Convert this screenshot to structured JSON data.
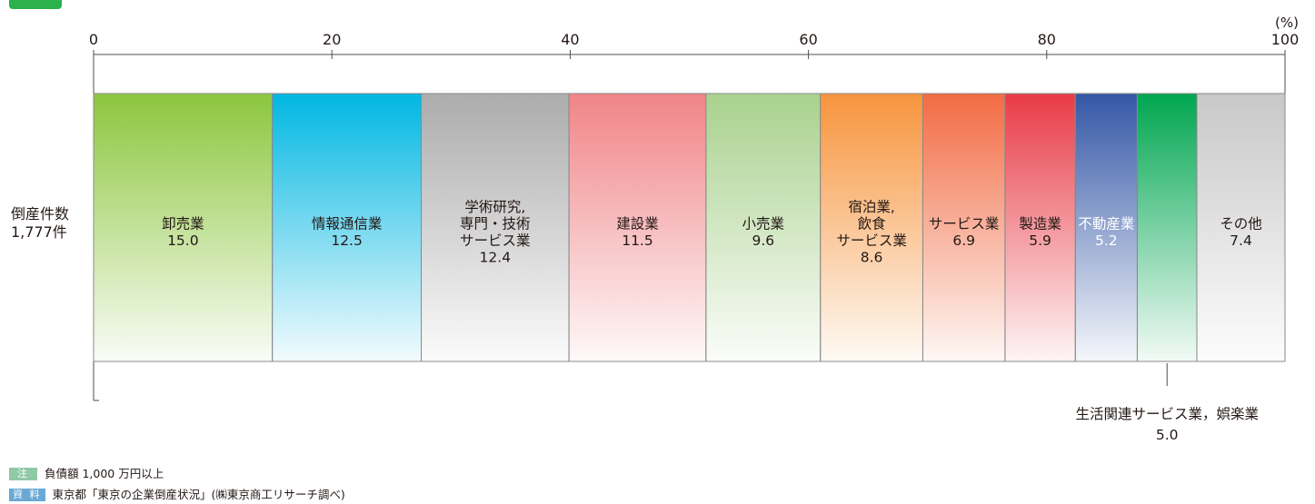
{
  "row_label": {
    "line1": "倒産件数",
    "line2": "1,777件"
  },
  "notes": {
    "note_tag": "注",
    "note_text": "負債額 1,000 万円以上",
    "source_tag": "資 料",
    "source_text": "東京都「東京の企業倒産状況」(㈱東京商工リサーチ調べ)"
  },
  "colors": {
    "badge": "#2bb24c",
    "note_tag_bg": "#8fc9a5",
    "source_tag_bg": "#6aa9d3",
    "axis": "#4d4d4d",
    "divider": "#8a8a8a"
  },
  "chart_data": {
    "type": "bar",
    "orientation": "horizontal-stacked",
    "unit": "(%)",
    "xlim": [
      0,
      100
    ],
    "xticks": [
      0,
      20,
      40,
      60,
      80,
      100
    ],
    "segments": [
      {
        "lines": [
          "卸売業"
        ],
        "value": 15.0,
        "value_label": "15.0",
        "color": "#8cc63f",
        "text_color": "#231815"
      },
      {
        "lines": [
          "情報通信業"
        ],
        "value": 12.5,
        "value_label": "12.5",
        "color": "#00b7e2",
        "text_color": "#231815"
      },
      {
        "lines": [
          "学術研究,",
          "専門・技術",
          "サービス業"
        ],
        "value": 12.4,
        "value_label": "12.4",
        "color": "#acacac",
        "text_color": "#231815"
      },
      {
        "lines": [
          "建設業"
        ],
        "value": 11.5,
        "value_label": "11.5",
        "color": "#f08487",
        "text_color": "#231815"
      },
      {
        "lines": [
          "小売業"
        ],
        "value": 9.6,
        "value_label": "9.6",
        "color": "#a9d18e",
        "text_color": "#231815"
      },
      {
        "lines": [
          "宿泊業,",
          "飲食",
          "サービス業"
        ],
        "value": 8.6,
        "value_label": "8.6",
        "color": "#f7943c",
        "text_color": "#231815"
      },
      {
        "lines": [
          "サービス業"
        ],
        "value": 6.9,
        "value_label": "6.9",
        "color": "#f26b43",
        "text_color": "#231815"
      },
      {
        "lines": [
          "製造業"
        ],
        "value": 5.9,
        "value_label": "5.9",
        "color": "#e83b46",
        "text_color": "#231815"
      },
      {
        "lines": [
          "不動産業"
        ],
        "value": 5.2,
        "value_label": "5.2",
        "color": "#3457a6",
        "text_color": "#ffffff"
      },
      {
        "lines": [],
        "value": 5.0,
        "value_label": "",
        "color": "#00a650",
        "text_color": "#231815"
      },
      {
        "lines": [
          "その他"
        ],
        "value": 7.4,
        "value_label": "7.4",
        "color": "#c8c8c8",
        "text_color": "#231815"
      }
    ],
    "callout": {
      "segment_index": 9,
      "label": "生活関連サービス業，娯楽業",
      "value_label": "5.0"
    }
  }
}
